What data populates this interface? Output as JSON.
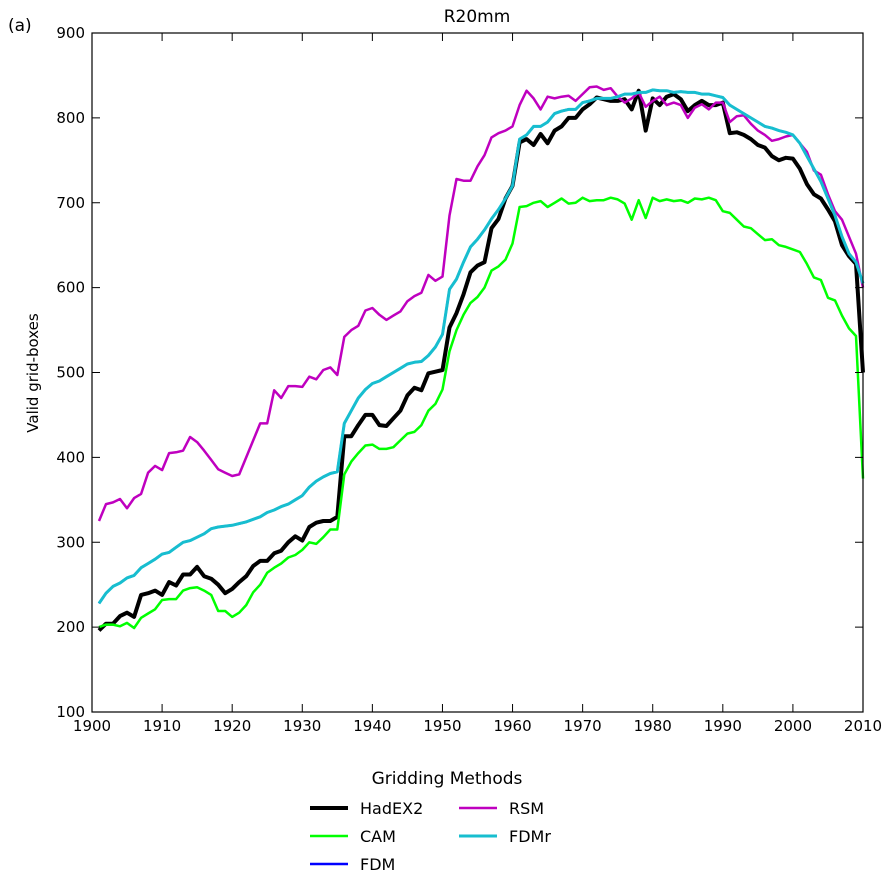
{
  "chart_data": {
    "type": "line",
    "panel_label": "(a)",
    "title": "R20mm",
    "xlabel": "",
    "ylabel": "Valid grid-boxes",
    "xlim": [
      1900,
      2010
    ],
    "ylim": [
      100,
      900
    ],
    "xticks": [
      1900,
      1910,
      1920,
      1930,
      1940,
      1950,
      1960,
      1970,
      1980,
      1990,
      2000,
      2010
    ],
    "yticks": [
      100,
      200,
      300,
      400,
      500,
      600,
      700,
      800,
      900
    ],
    "grid": false,
    "legend": {
      "title": "Gridding Methods",
      "placement": "below plot",
      "columns": [
        [
          "HadEX2",
          "CAM",
          "FDM"
        ],
        [
          "RSM",
          "FDMr"
        ]
      ]
    },
    "series": [
      {
        "name": "HadEX2",
        "color": "#000000",
        "width": 4,
        "x": [
          1901,
          1902,
          1903,
          1904,
          1905,
          1906,
          1907,
          1908,
          1909,
          1910,
          1911,
          1912,
          1913,
          1914,
          1915,
          1916,
          1917,
          1918,
          1919,
          1920,
          1921,
          1922,
          1923,
          1924,
          1925,
          1926,
          1927,
          1928,
          1929,
          1930,
          1931,
          1932,
          1933,
          1934,
          1935,
          1936,
          1937,
          1938,
          1939,
          1940,
          1941,
          1942,
          1943,
          1944,
          1945,
          1946,
          1947,
          1948,
          1949,
          1950,
          1951,
          1952,
          1953,
          1954,
          1955,
          1956,
          1957,
          1958,
          1959,
          1960,
          1961,
          1962,
          1963,
          1964,
          1965,
          1966,
          1967,
          1968,
          1969,
          1970,
          1971,
          1972,
          1973,
          1974,
          1975,
          1976,
          1977,
          1978,
          1979,
          1980,
          1981,
          1982,
          1983,
          1984,
          1985,
          1986,
          1987,
          1988,
          1989,
          1990,
          1991,
          1992,
          1993,
          1994,
          1995,
          1996,
          1997,
          1998,
          1999,
          2000,
          2001,
          2002,
          2003,
          2004,
          2005,
          2006,
          2007,
          2008,
          2009,
          2010
        ],
        "y": [
          196,
          204,
          204,
          213,
          217,
          212,
          238,
          240,
          243,
          238,
          253,
          249,
          262,
          262,
          271,
          260,
          257,
          250,
          240,
          245,
          253,
          260,
          272,
          278,
          278,
          287,
          290,
          300,
          307,
          302,
          318,
          323,
          325,
          325,
          330,
          425,
          425,
          438,
          450,
          450,
          438,
          437,
          446,
          455,
          473,
          482,
          479,
          499,
          501,
          503,
          553,
          570,
          592,
          618,
          626,
          630,
          670,
          681,
          705,
          720,
          771,
          775,
          768,
          781,
          770,
          785,
          790,
          800,
          800,
          810,
          816,
          824,
          822,
          820,
          820,
          822,
          810,
          832,
          785,
          823,
          815,
          825,
          828,
          822,
          808,
          815,
          820,
          815,
          815,
          818,
          782,
          783,
          780,
          775,
          768,
          765,
          755,
          750,
          753,
          752,
          740,
          722,
          710,
          705,
          692,
          678,
          650,
          637,
          628,
          500
        ]
      },
      {
        "name": "CAM",
        "color": "#00ff00",
        "width": 2.5,
        "x": [
          1901,
          1902,
          1903,
          1904,
          1905,
          1906,
          1907,
          1908,
          1909,
          1910,
          1911,
          1912,
          1913,
          1914,
          1915,
          1916,
          1917,
          1918,
          1919,
          1920,
          1921,
          1922,
          1923,
          1924,
          1925,
          1926,
          1927,
          1928,
          1929,
          1930,
          1931,
          1932,
          1933,
          1934,
          1935,
          1936,
          1937,
          1938,
          1939,
          1940,
          1941,
          1942,
          1943,
          1944,
          1945,
          1946,
          1947,
          1948,
          1949,
          1950,
          1951,
          1952,
          1953,
          1954,
          1955,
          1956,
          1957,
          1958,
          1959,
          1960,
          1961,
          1962,
          1963,
          1964,
          1965,
          1966,
          1967,
          1968,
          1969,
          1970,
          1971,
          1972,
          1973,
          1974,
          1975,
          1976,
          1977,
          1978,
          1979,
          1980,
          1981,
          1982,
          1983,
          1984,
          1985,
          1986,
          1987,
          1988,
          1989,
          1990,
          1991,
          1992,
          1993,
          1994,
          1995,
          1996,
          1997,
          1998,
          1999,
          2000,
          2001,
          2002,
          2003,
          2004,
          2005,
          2006,
          2007,
          2008,
          2009,
          2010
        ],
        "y": [
          200,
          203,
          203,
          201,
          205,
          199,
          211,
          216,
          221,
          232,
          233,
          233,
          243,
          246,
          247,
          243,
          238,
          219,
          219,
          212,
          217,
          226,
          241,
          250,
          264,
          270,
          275,
          282,
          285,
          291,
          300,
          298,
          306,
          315,
          315,
          380,
          395,
          405,
          414,
          415,
          410,
          410,
          412,
          420,
          428,
          430,
          438,
          455,
          463,
          480,
          525,
          550,
          568,
          582,
          589,
          600,
          620,
          625,
          633,
          652,
          695,
          696,
          700,
          702,
          695,
          700,
          705,
          699,
          700,
          706,
          702,
          703,
          703,
          706,
          704,
          699,
          680,
          703,
          682,
          706,
          702,
          704,
          702,
          703,
          700,
          705,
          704,
          706,
          703,
          690,
          688,
          680,
          672,
          670,
          663,
          656,
          657,
          650,
          648,
          645,
          642,
          628,
          612,
          609,
          588,
          585,
          567,
          552,
          543,
          375
        ]
      },
      {
        "name": "FDM",
        "color": "#0000ff",
        "width": 2.5,
        "x": [
          1901,
          1902,
          1903,
          1904,
          1905,
          1906,
          1907,
          1908,
          1909,
          1910,
          1911,
          1912,
          1913,
          1914,
          1915,
          1916,
          1917,
          1918,
          1919,
          1920,
          1921,
          1922,
          1923,
          1924,
          1925,
          1926,
          1927,
          1928,
          1929,
          1930,
          1931,
          1932,
          1933,
          1934,
          1935,
          1936,
          1937,
          1938,
          1939,
          1940,
          1941,
          1942,
          1943,
          1944,
          1945,
          1946,
          1947,
          1948,
          1949,
          1950,
          1951,
          1952,
          1953,
          1954,
          1955,
          1956,
          1957,
          1958,
          1959,
          1960,
          1961,
          1962,
          1963,
          1964,
          1965,
          1966,
          1967,
          1968,
          1969,
          1970,
          1971,
          1972,
          1973,
          1974,
          1975,
          1976,
          1977,
          1978,
          1979,
          1980,
          1981,
          1982,
          1983,
          1984,
          1985,
          1986,
          1987,
          1988,
          1989,
          1990,
          1991,
          1992,
          1993,
          1994,
          1995,
          1996,
          1997,
          1998,
          1999,
          2000,
          2001,
          2002,
          2003,
          2004,
          2005,
          2006,
          2007,
          2008,
          2009,
          2010
        ],
        "y": [
          228,
          240,
          248,
          252,
          258,
          261,
          270,
          275,
          280,
          286,
          288,
          294,
          300,
          302,
          306,
          310,
          316,
          318,
          319,
          320,
          322,
          324,
          327,
          330,
          335,
          338,
          342,
          345,
          350,
          355,
          365,
          372,
          377,
          381,
          383,
          440,
          455,
          470,
          480,
          487,
          490,
          495,
          500,
          505,
          510,
          512,
          513,
          520,
          530,
          545,
          598,
          610,
          630,
          648,
          657,
          668,
          681,
          692,
          705,
          720,
          775,
          780,
          790,
          790,
          795,
          805,
          808,
          810,
          810,
          818,
          820,
          823,
          823,
          823,
          825,
          828,
          828,
          830,
          830,
          833,
          832,
          832,
          830,
          831,
          830,
          830,
          828,
          828,
          826,
          824,
          815,
          810,
          805,
          800,
          795,
          790,
          788,
          785,
          783,
          780,
          770,
          755,
          740,
          725,
          705,
          685,
          660,
          640,
          630,
          605
        ]
      },
      {
        "name": "RSM",
        "color": "#bf00bf",
        "width": 2.5,
        "x": [
          1901,
          1902,
          1903,
          1904,
          1905,
          1906,
          1907,
          1908,
          1909,
          1910,
          1911,
          1912,
          1913,
          1914,
          1915,
          1916,
          1917,
          1918,
          1919,
          1920,
          1921,
          1922,
          1923,
          1924,
          1925,
          1926,
          1927,
          1928,
          1929,
          1930,
          1931,
          1932,
          1933,
          1934,
          1935,
          1936,
          1937,
          1938,
          1939,
          1940,
          1941,
          1942,
          1943,
          1944,
          1945,
          1946,
          1947,
          1948,
          1949,
          1950,
          1951,
          1952,
          1953,
          1954,
          1955,
          1956,
          1957,
          1958,
          1959,
          1960,
          1961,
          1962,
          1963,
          1964,
          1965,
          1966,
          1967,
          1968,
          1969,
          1970,
          1971,
          1972,
          1973,
          1974,
          1975,
          1976,
          1977,
          1978,
          1979,
          1980,
          1981,
          1982,
          1983,
          1984,
          1985,
          1986,
          1987,
          1988,
          1989,
          1990,
          1991,
          1992,
          1993,
          1994,
          1995,
          1996,
          1997,
          1998,
          1999,
          2000,
          2001,
          2002,
          2003,
          2004,
          2005,
          2006,
          2007,
          2008,
          2009,
          2010
        ],
        "y": [
          325,
          345,
          347,
          351,
          340,
          352,
          357,
          382,
          390,
          385,
          405,
          406,
          408,
          424,
          418,
          408,
          397,
          386,
          382,
          378,
          380,
          400,
          420,
          440,
          440,
          479,
          470,
          484,
          484,
          483,
          495,
          492,
          503,
          506,
          497,
          542,
          550,
          555,
          573,
          576,
          568,
          562,
          567,
          572,
          584,
          590,
          594,
          615,
          608,
          613,
          685,
          728,
          726,
          726,
          743,
          756,
          777,
          782,
          785,
          790,
          815,
          832,
          823,
          810,
          825,
          823,
          825,
          826,
          820,
          828,
          836,
          837,
          833,
          835,
          825,
          818,
          823,
          830,
          813,
          820,
          825,
          815,
          818,
          815,
          800,
          812,
          816,
          810,
          818,
          818,
          795,
          802,
          803,
          793,
          785,
          780,
          773,
          775,
          778,
          780,
          770,
          760,
          738,
          733,
          710,
          690,
          680,
          660,
          640,
          600
        ]
      },
      {
        "name": "FDMr",
        "color": "#17becf",
        "width": 3,
        "x": [
          1901,
          1902,
          1903,
          1904,
          1905,
          1906,
          1907,
          1908,
          1909,
          1910,
          1911,
          1912,
          1913,
          1914,
          1915,
          1916,
          1917,
          1918,
          1919,
          1920,
          1921,
          1922,
          1923,
          1924,
          1925,
          1926,
          1927,
          1928,
          1929,
          1930,
          1931,
          1932,
          1933,
          1934,
          1935,
          1936,
          1937,
          1938,
          1939,
          1940,
          1941,
          1942,
          1943,
          1944,
          1945,
          1946,
          1947,
          1948,
          1949,
          1950,
          1951,
          1952,
          1953,
          1954,
          1955,
          1956,
          1957,
          1958,
          1959,
          1960,
          1961,
          1962,
          1963,
          1964,
          1965,
          1966,
          1967,
          1968,
          1969,
          1970,
          1971,
          1972,
          1973,
          1974,
          1975,
          1976,
          1977,
          1978,
          1979,
          1980,
          1981,
          1982,
          1983,
          1984,
          1985,
          1986,
          1987,
          1988,
          1989,
          1990,
          1991,
          1992,
          1993,
          1994,
          1995,
          1996,
          1997,
          1998,
          1999,
          2000,
          2001,
          2002,
          2003,
          2004,
          2005,
          2006,
          2007,
          2008,
          2009,
          2010
        ],
        "y": [
          228,
          240,
          248,
          252,
          258,
          261,
          270,
          275,
          280,
          286,
          288,
          294,
          300,
          302,
          306,
          310,
          316,
          318,
          319,
          320,
          322,
          324,
          327,
          330,
          335,
          338,
          342,
          345,
          350,
          355,
          365,
          372,
          377,
          381,
          383,
          440,
          455,
          470,
          480,
          487,
          490,
          495,
          500,
          505,
          510,
          512,
          513,
          520,
          530,
          545,
          598,
          610,
          630,
          648,
          657,
          668,
          681,
          692,
          705,
          720,
          775,
          780,
          790,
          790,
          795,
          805,
          808,
          810,
          810,
          818,
          820,
          823,
          823,
          823,
          825,
          828,
          828,
          830,
          830,
          833,
          832,
          832,
          830,
          831,
          830,
          830,
          828,
          828,
          826,
          824,
          815,
          810,
          805,
          800,
          795,
          790,
          788,
          785,
          783,
          780,
          770,
          755,
          740,
          725,
          705,
          685,
          660,
          640,
          630,
          605
        ]
      }
    ]
  }
}
